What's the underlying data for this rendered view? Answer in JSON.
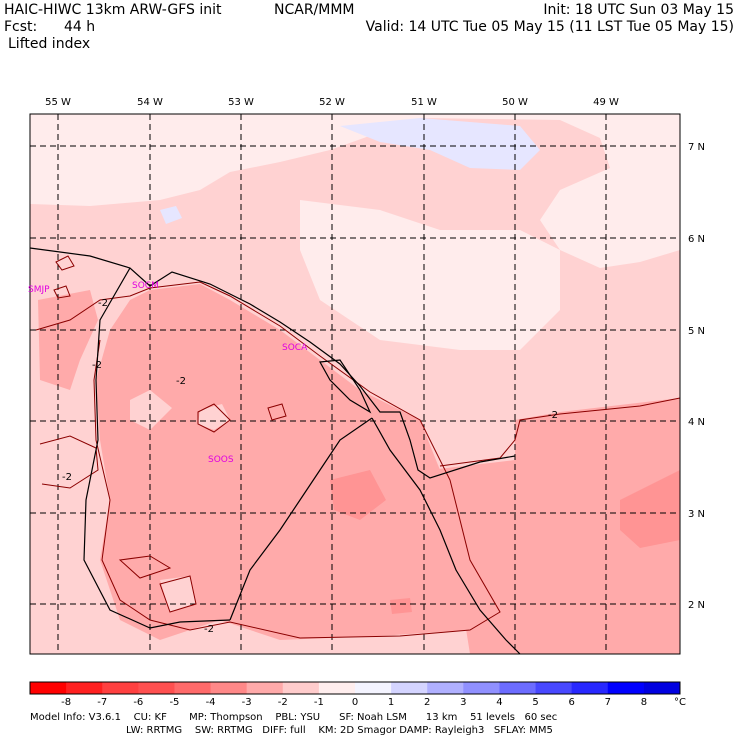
{
  "header": {
    "title_left": "HAIC-HIWC 13km ARW-GFS init",
    "title_center": "NCAR/MMM",
    "init": "Init: 18 UTC Sun 03 May 15",
    "fcst_label": "Fcst:",
    "fcst_value": "44 h",
    "valid": "Valid: 14 UTC Tue 05 May 15 (11 LST Tue 05 May 15)",
    "field_name": "Lifted index"
  },
  "map": {
    "lon_labels": [
      "55 W",
      "54 W",
      "53 W",
      "52 W",
      "51 W",
      "50 W",
      "49 W"
    ],
    "lat_labels": [
      "7 N",
      "6 N",
      "5 N",
      "4 N",
      "3 N",
      "2 N"
    ],
    "stations": [
      "SMJP",
      "SOCM",
      "SOCA",
      "SOOS"
    ],
    "contour_label": "-2",
    "colors": {
      "lightest": "#ffecec",
      "light": "#ffd2d2",
      "medium": "#ffaaaa",
      "blue": "#e6e6ff",
      "contour": "#8b0000",
      "station": "#e000e0"
    }
  },
  "colorbar": {
    "ticks": [
      "-8",
      "-7",
      "-6",
      "-5",
      "-4",
      "-3",
      "-2",
      "-1",
      "0",
      "1",
      "2",
      "3",
      "4",
      "5",
      "6",
      "7",
      "8"
    ],
    "unit": "°C",
    "colors": [
      "#ff0000",
      "#ff2020",
      "#ff4040",
      "#ff5050",
      "#ff6a6a",
      "#ff8888",
      "#ffaaaa",
      "#ffcccc",
      "#ffeeee",
      "#f4f4ff",
      "#d4d4ff",
      "#b0b0ff",
      "#9090ff",
      "#6c6cff",
      "#4848ff",
      "#2828ff",
      "#0000ff",
      "#0000e0"
    ]
  },
  "footer": {
    "line1": "Model Info: V3.6.1    CU: KF       MP: Thompson    PBL: YSU      SF: Noah LSM      13 km    51 levels   60 sec",
    "line2": "LW: RRTMG    SW: RRTMG   DIFF: full    KM: 2D Smagor DAMP: Rayleigh3   SFLAY: MM5"
  }
}
